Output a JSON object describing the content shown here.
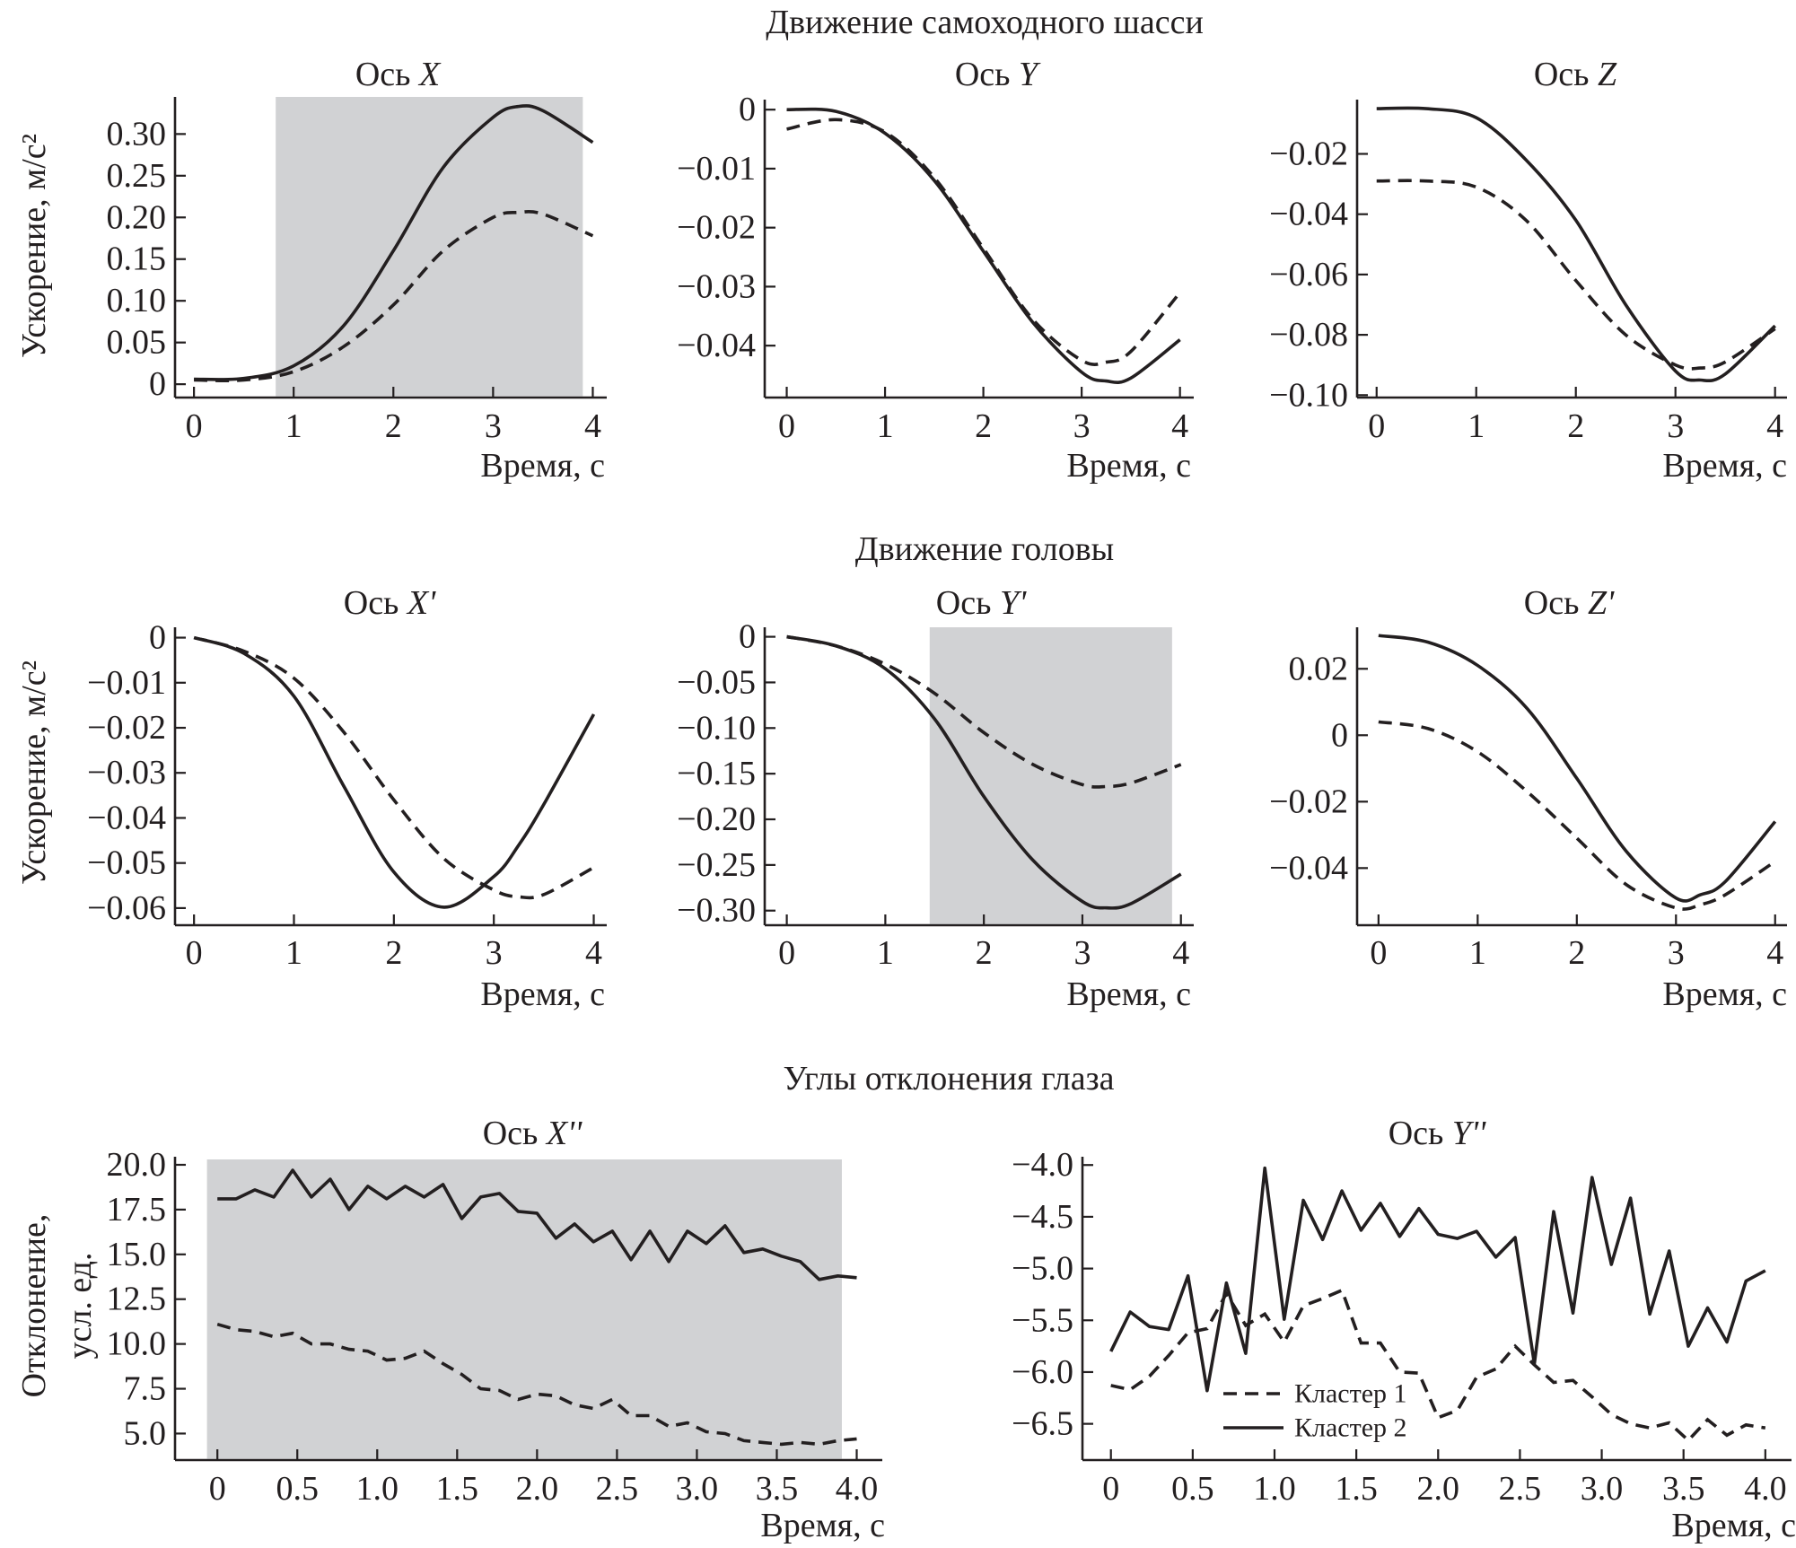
{
  "figure": {
    "groups": [
      {
        "title": "Движение самоходного шасси"
      },
      {
        "title": "Движение головы"
      },
      {
        "title": "Углы отклонения глаза"
      }
    ],
    "colors": {
      "line": "#231f20",
      "shade": "#d1d2d4",
      "background": "#ffffff"
    }
  },
  "chart_data": [
    {
      "type": "line",
      "title_prefix": "Ось ",
      "title_axis": "X",
      "xlabel": "Время, с",
      "ylabel": "Ускорение, м/с²",
      "xlim": [
        -0.19,
        4.14
      ],
      "ylim": [
        -0.016,
        0.3445
      ],
      "shaded_x": [
        0.82,
        3.9
      ],
      "xticks": [
        {
          "v": 0,
          "label": "0"
        },
        {
          "v": 1,
          "label": "1"
        },
        {
          "v": 2,
          "label": "2"
        },
        {
          "v": 3,
          "label": "3"
        },
        {
          "v": 4,
          "label": "4"
        }
      ],
      "yticks": [
        {
          "v": 0,
          "label": "0"
        },
        {
          "v": 0.05,
          "label": "0.05"
        },
        {
          "v": 0.1,
          "label": "0.10"
        },
        {
          "v": 0.15,
          "label": "0.15"
        },
        {
          "v": 0.2,
          "label": "0.20"
        },
        {
          "v": 0.25,
          "label": "0.25"
        },
        {
          "v": 0.3,
          "label": "0.30"
        }
      ],
      "x": [
        0,
        0.5,
        1,
        1.5,
        2,
        2.5,
        3,
        3.25,
        3.5,
        4
      ],
      "series": [
        {
          "style": "dashed",
          "values": [
            0.005,
            0.005,
            0.015,
            0.045,
            0.095,
            0.16,
            0.2,
            0.206,
            0.204,
            0.178
          ]
        },
        {
          "style": "solid",
          "values": [
            0.006,
            0.007,
            0.022,
            0.07,
            0.16,
            0.26,
            0.32,
            0.333,
            0.328,
            0.29
          ]
        }
      ]
    },
    {
      "type": "line",
      "title_prefix": "Ось ",
      "title_axis": "Y",
      "xlabel": "Время, с",
      "xlim": [
        -0.224,
        4.14
      ],
      "ylim": [
        -0.0488,
        0.0017
      ],
      "xticks": [
        {
          "v": 0,
          "label": "0"
        },
        {
          "v": 1,
          "label": "1"
        },
        {
          "v": 2,
          "label": "2"
        },
        {
          "v": 3,
          "label": "3"
        },
        {
          "v": 4,
          "label": "4"
        }
      ],
      "yticks": [
        {
          "v": 0,
          "label": "0"
        },
        {
          "v": -0.01,
          "label": "−0.01"
        },
        {
          "v": -0.02,
          "label": "−0.02"
        },
        {
          "v": -0.03,
          "label": "−0.03"
        },
        {
          "v": -0.04,
          "label": "−0.04"
        }
      ],
      "x": [
        0,
        0.5,
        1,
        1.5,
        2,
        2.5,
        3,
        3.25,
        3.5,
        4
      ],
      "series": [
        {
          "style": "dashed",
          "values": [
            -0.0033,
            -0.0017,
            -0.0038,
            -0.0115,
            -0.0235,
            -0.0355,
            -0.0425,
            -0.0428,
            -0.041,
            -0.031
          ]
        },
        {
          "style": "solid",
          "values": [
            0,
            -0.0003,
            -0.004,
            -0.012,
            -0.024,
            -0.036,
            -0.0445,
            -0.046,
            -0.0455,
            -0.039
          ]
        }
      ]
    },
    {
      "type": "line",
      "title_prefix": "Ось ",
      "title_axis": "Z",
      "xlabel": "Время, с",
      "xlim": [
        -0.196,
        4.12
      ],
      "ylim": [
        -0.1008,
        -0.002
      ],
      "xticks": [
        {
          "v": 0,
          "label": "0"
        },
        {
          "v": 1,
          "label": "1"
        },
        {
          "v": 2,
          "label": "2"
        },
        {
          "v": 3,
          "label": "3"
        },
        {
          "v": 4,
          "label": "4"
        }
      ],
      "yticks": [
        {
          "v": -0.02,
          "label": "−0.02"
        },
        {
          "v": -0.04,
          "label": "−0.04"
        },
        {
          "v": -0.06,
          "label": "−0.06"
        },
        {
          "v": -0.08,
          "label": "−0.08"
        },
        {
          "v": -0.1,
          "label": "−0.10"
        }
      ],
      "x": [
        0,
        0.5,
        1,
        1.5,
        2,
        2.5,
        3,
        3.25,
        3.5,
        4
      ],
      "series": [
        {
          "style": "dashed",
          "values": [
            -0.029,
            -0.029,
            -0.031,
            -0.042,
            -0.062,
            -0.08,
            -0.09,
            -0.091,
            -0.089,
            -0.078
          ]
        },
        {
          "style": "solid",
          "values": [
            -0.005,
            -0.005,
            -0.008,
            -0.022,
            -0.042,
            -0.07,
            -0.092,
            -0.095,
            -0.093,
            -0.077
          ]
        }
      ]
    },
    {
      "type": "line",
      "title_prefix": "Ось ",
      "title_axis": "X'",
      "xlabel": "Время, с",
      "ylabel": "Ускорение, м/с²",
      "xlim": [
        -0.19,
        4.13
      ],
      "ylim": [
        -0.0638,
        0.0023
      ],
      "xticks": [
        {
          "v": 0,
          "label": "0"
        },
        {
          "v": 1,
          "label": "1"
        },
        {
          "v": 2,
          "label": "2"
        },
        {
          "v": 3,
          "label": "3"
        },
        {
          "v": 4,
          "label": "4"
        }
      ],
      "yticks": [
        {
          "v": 0,
          "label": "0"
        },
        {
          "v": -0.01,
          "label": "−0.01"
        },
        {
          "v": -0.02,
          "label": "−0.02"
        },
        {
          "v": -0.03,
          "label": "−0.03"
        },
        {
          "v": -0.04,
          "label": "−0.04"
        },
        {
          "v": -0.05,
          "label": "−0.05"
        },
        {
          "v": -0.06,
          "label": "−0.06"
        }
      ],
      "x": [
        0,
        0.5,
        1,
        1.5,
        2,
        2.5,
        3,
        3.25,
        3.5,
        4
      ],
      "series": [
        {
          "style": "dashed",
          "values": [
            0,
            -0.003,
            -0.009,
            -0.021,
            -0.036,
            -0.049,
            -0.056,
            -0.0575,
            -0.057,
            -0.051
          ]
        },
        {
          "style": "solid",
          "values": [
            0,
            -0.0035,
            -0.013,
            -0.033,
            -0.052,
            -0.0598,
            -0.053,
            -0.046,
            -0.037,
            -0.017
          ]
        }
      ]
    },
    {
      "type": "line",
      "title_prefix": "Ось ",
      "title_axis": "Y'",
      "xlabel": "Время, с",
      "xlim": [
        -0.224,
        4.13
      ],
      "ylim": [
        -0.316,
        0.0104
      ],
      "shaded_x": [
        1.45,
        3.91
      ],
      "xticks": [
        {
          "v": 0,
          "label": "0"
        },
        {
          "v": 1,
          "label": "1"
        },
        {
          "v": 2,
          "label": "2"
        },
        {
          "v": 3,
          "label": "3"
        },
        {
          "v": 4,
          "label": "4"
        }
      ],
      "yticks": [
        {
          "v": 0,
          "label": "0"
        },
        {
          "v": -0.05,
          "label": "−0.05"
        },
        {
          "v": -0.1,
          "label": "−0.10"
        },
        {
          "v": -0.15,
          "label": "−0.15"
        },
        {
          "v": -0.2,
          "label": "−0.20"
        },
        {
          "v": -0.25,
          "label": "−0.25"
        },
        {
          "v": -0.3,
          "label": "−0.30"
        }
      ],
      "x": [
        0,
        0.5,
        1,
        1.5,
        2,
        2.5,
        3,
        3.25,
        3.5,
        4
      ],
      "series": [
        {
          "style": "dashed",
          "values": [
            0,
            -0.01,
            -0.03,
            -0.062,
            -0.105,
            -0.14,
            -0.162,
            -0.164,
            -0.16,
            -0.14
          ]
        },
        {
          "style": "solid",
          "values": [
            0,
            -0.01,
            -0.035,
            -0.09,
            -0.175,
            -0.245,
            -0.29,
            -0.297,
            -0.292,
            -0.26
          ]
        }
      ]
    },
    {
      "type": "line",
      "title_prefix": "Ось ",
      "title_axis": "Z'",
      "xlabel": "Время, с",
      "xlim": [
        -0.216,
        4.12
      ],
      "ylim": [
        -0.0572,
        0.0325
      ],
      "xticks": [
        {
          "v": 0,
          "label": "0"
        },
        {
          "v": 1,
          "label": "1"
        },
        {
          "v": 2,
          "label": "2"
        },
        {
          "v": 3,
          "label": "3"
        },
        {
          "v": 4,
          "label": "4"
        }
      ],
      "yticks": [
        {
          "v": 0.02,
          "label": "0.02"
        },
        {
          "v": 0,
          "label": "0"
        },
        {
          "v": -0.02,
          "label": "−0.02"
        },
        {
          "v": -0.04,
          "label": "−0.04"
        }
      ],
      "x": [
        0,
        0.5,
        1,
        1.5,
        2,
        2.5,
        3,
        3.25,
        3.5,
        4
      ],
      "series": [
        {
          "style": "dashed",
          "values": [
            0.004,
            0.002,
            -0.005,
            -0.017,
            -0.031,
            -0.045,
            -0.052,
            -0.051,
            -0.048,
            -0.038
          ]
        },
        {
          "style": "solid",
          "values": [
            0.03,
            0.028,
            0.021,
            0.008,
            -0.013,
            -0.035,
            -0.049,
            -0.048,
            -0.044,
            -0.026
          ]
        }
      ]
    },
    {
      "type": "line",
      "title_prefix": "Ось ",
      "title_axis": "X''",
      "xlabel": "Время, с",
      "ylabel_lines": [
        "Отклонение,",
        "усл. ед."
      ],
      "xlim": [
        -0.265,
        4.16
      ],
      "ylim": [
        3.52,
        20.45
      ],
      "shaded_x": [
        -0.065,
        3.907
      ],
      "shaded_y_top": 20.3,
      "xticks": [
        {
          "v": 0,
          "label": "0"
        },
        {
          "v": 0.5,
          "label": "0.5"
        },
        {
          "v": 1,
          "label": "1.0"
        },
        {
          "v": 1.5,
          "label": "1.5"
        },
        {
          "v": 2,
          "label": "2.0"
        },
        {
          "v": 2.5,
          "label": "2.5"
        },
        {
          "v": 3,
          "label": "3.0"
        },
        {
          "v": 3.5,
          "label": "3.5"
        },
        {
          "v": 4,
          "label": "4.0"
        }
      ],
      "yticks": [
        {
          "v": 5,
          "label": "5.0"
        },
        {
          "v": 7.5,
          "label": "7.5"
        },
        {
          "v": 10,
          "label": "10.0"
        },
        {
          "v": 12.5,
          "label": "12.5"
        },
        {
          "v": 15,
          "label": "15.0"
        },
        {
          "v": 17.5,
          "label": "17.5"
        },
        {
          "v": 20,
          "label": "20.0"
        }
      ],
      "x": [
        0,
        0.118,
        0.235,
        0.353,
        0.471,
        0.588,
        0.706,
        0.824,
        0.941,
        1.059,
        1.176,
        1.294,
        1.412,
        1.529,
        1.647,
        1.765,
        1.882,
        2.0,
        2.118,
        2.235,
        2.353,
        2.471,
        2.588,
        2.706,
        2.824,
        2.941,
        3.059,
        3.176,
        3.294,
        3.412,
        3.529,
        3.647,
        3.765,
        3.882,
        4.0
      ],
      "series": [
        {
          "style": "dashed",
          "values": [
            11.1,
            10.8,
            10.7,
            10.4,
            10.6,
            10.0,
            10.0,
            9.7,
            9.6,
            9.1,
            9.2,
            9.6,
            8.9,
            8.3,
            7.5,
            7.4,
            6.9,
            7.2,
            7.1,
            6.6,
            6.4,
            6.9,
            6.0,
            6.0,
            5.4,
            5.6,
            5.1,
            5.0,
            4.6,
            4.5,
            4.4,
            4.5,
            4.4,
            4.6,
            4.7
          ]
        },
        {
          "style": "solid",
          "values": [
            18.1,
            18.1,
            18.6,
            18.2,
            19.7,
            18.2,
            19.2,
            17.5,
            18.8,
            18.1,
            18.8,
            18.2,
            18.9,
            17.0,
            18.2,
            18.4,
            17.4,
            17.3,
            15.9,
            16.7,
            15.7,
            16.3,
            14.7,
            16.3,
            14.6,
            16.3,
            15.6,
            16.6,
            15.1,
            15.3,
            14.9,
            14.6,
            13.6,
            13.8,
            13.7
          ]
        }
      ]
    },
    {
      "type": "line",
      "title_prefix": "Ось ",
      "title_axis": "Y''",
      "xlabel": "Время, с",
      "xlim": [
        -0.174,
        4.16
      ],
      "ylim": [
        -6.85,
        -3.92
      ],
      "xticks": [
        {
          "v": 0,
          "label": "0"
        },
        {
          "v": 0.5,
          "label": "0.5"
        },
        {
          "v": 1,
          "label": "1.0"
        },
        {
          "v": 1.5,
          "label": "1.5"
        },
        {
          "v": 2,
          "label": "2.0"
        },
        {
          "v": 2.5,
          "label": "2.5"
        },
        {
          "v": 3,
          "label": "3.0"
        },
        {
          "v": 3.5,
          "label": "3.5"
        },
        {
          "v": 4,
          "label": "4.0"
        }
      ],
      "yticks": [
        {
          "v": -4,
          "label": "−4.0"
        },
        {
          "v": -4.5,
          "label": "−4.5"
        },
        {
          "v": -5,
          "label": "−5.0"
        },
        {
          "v": -5.5,
          "label": "−5.5"
        },
        {
          "v": -6,
          "label": "−6.0"
        },
        {
          "v": -6.5,
          "label": "−6.5"
        }
      ],
      "x": [
        0,
        0.118,
        0.235,
        0.353,
        0.471,
        0.588,
        0.706,
        0.824,
        0.941,
        1.059,
        1.176,
        1.294,
        1.412,
        1.529,
        1.647,
        1.765,
        1.882,
        2.0,
        2.118,
        2.235,
        2.353,
        2.471,
        2.588,
        2.706,
        2.824,
        2.941,
        3.059,
        3.176,
        3.294,
        3.412,
        3.529,
        3.647,
        3.765,
        3.882,
        4.0
      ],
      "legend": "bottom-left",
      "series": [
        {
          "name": "Кластер 1",
          "style": "dashed",
          "values": [
            -6.13,
            -6.17,
            -6.04,
            -5.84,
            -5.62,
            -5.58,
            -5.24,
            -5.55,
            -5.44,
            -5.71,
            -5.36,
            -5.29,
            -5.21,
            -5.72,
            -5.72,
            -6.0,
            -6.01,
            -6.44,
            -6.37,
            -6.05,
            -5.97,
            -5.75,
            -5.93,
            -6.1,
            -6.08,
            -6.24,
            -6.41,
            -6.5,
            -6.54,
            -6.49,
            -6.66,
            -6.46,
            -6.61,
            -6.51,
            -6.54
          ]
        },
        {
          "name": "Кластер 2",
          "style": "solid",
          "values": [
            -5.8,
            -5.42,
            -5.56,
            -5.59,
            -5.07,
            -6.18,
            -5.14,
            -5.82,
            -4.03,
            -5.49,
            -4.34,
            -4.72,
            -4.25,
            -4.63,
            -4.37,
            -4.69,
            -4.42,
            -4.67,
            -4.71,
            -4.64,
            -4.89,
            -4.7,
            -5.92,
            -4.45,
            -5.43,
            -4.12,
            -4.96,
            -4.32,
            -5.44,
            -4.83,
            -5.75,
            -5.38,
            -5.71,
            -5.12,
            -5.02
          ]
        }
      ]
    }
  ]
}
